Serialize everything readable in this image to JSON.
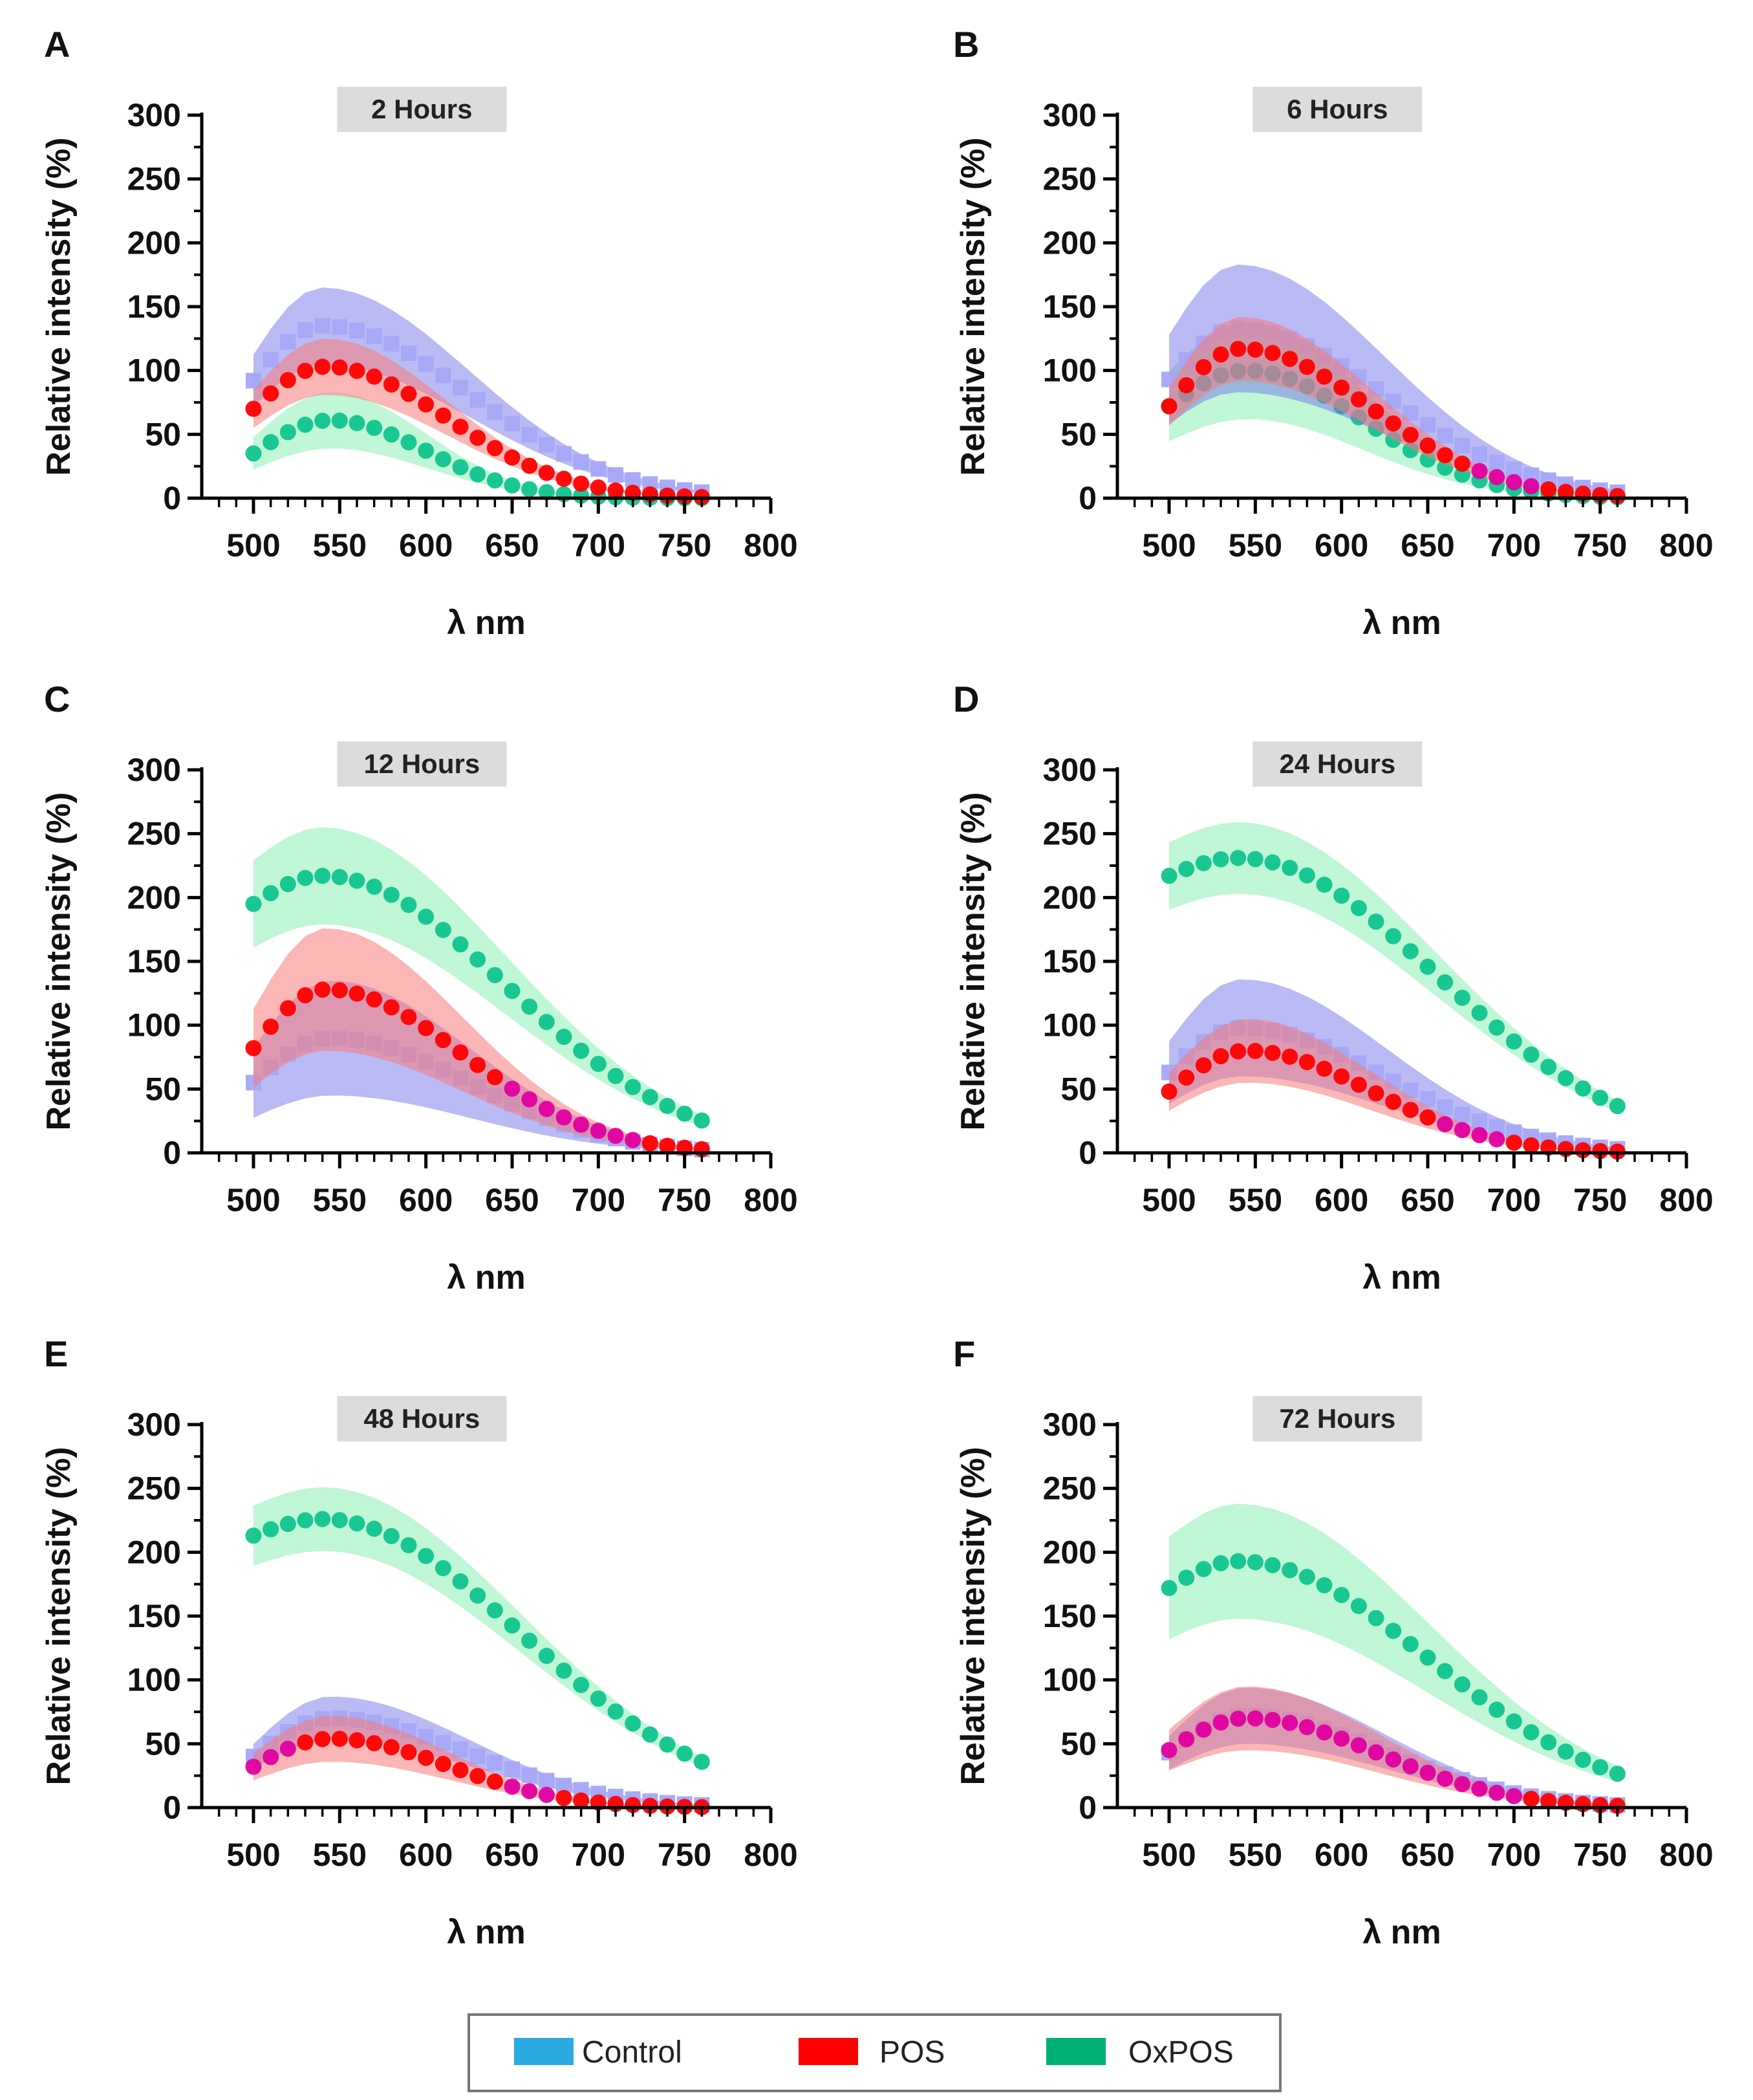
{
  "legend": {
    "entries": [
      {
        "label": "Control",
        "color": "#29ABE2"
      },
      {
        "label": "POS",
        "color": "#FF0000"
      },
      {
        "label": "OxPOS",
        "color": "#00B074"
      }
    ]
  },
  "colors": {
    "control_marker": "#A5A6F6",
    "control_band": "#6E6EE8",
    "pos_marker": "#FF0000",
    "pos_marker_overlap": "#E000A0",
    "pos_band": "#F77A7A",
    "oxpos_marker": "#10C48E",
    "oxpos_band": "#8CF0B4",
    "time_label_bg": "#DCDCDC"
  },
  "chart_data": [
    {
      "type": "scatter",
      "panel": "A",
      "title": "2 Hours",
      "xlabel": "λ nm",
      "ylabel": "Relative intensity (%)",
      "xlim": [
        470,
        800
      ],
      "ylim": [
        0,
        300
      ],
      "xticks": [
        "500",
        "550",
        "600",
        "650",
        "700",
        "750",
        "800"
      ],
      "yticks": [
        "0",
        "50",
        "100",
        "150",
        "200",
        "250",
        "300"
      ],
      "series": [
        {
          "name": "Control",
          "peak_x": 540,
          "peak": 135,
          "start": 92,
          "tail_x": 640,
          "sd": 30,
          "marker": "square"
        },
        {
          "name": "POS",
          "peak_x": 542,
          "peak": 103,
          "start": 70,
          "tail_x": 625,
          "sd": 22,
          "marker": "circle"
        },
        {
          "name": "OxPOS",
          "peak_x": 545,
          "peak": 61,
          "start": 35,
          "tail_x": 610,
          "sd": 22,
          "marker": "circle"
        }
      ]
    },
    {
      "type": "scatter",
      "panel": "B",
      "title": "6 Hours",
      "xlabel": "λ nm",
      "ylabel": "Relative intensity (%)",
      "xlim": [
        470,
        800
      ],
      "ylim": [
        0,
        300
      ],
      "xticks": [
        "500",
        "550",
        "600",
        "650",
        "700",
        "750",
        "800"
      ],
      "yticks": [
        "0",
        "50",
        "100",
        "150",
        "200",
        "250",
        "300"
      ],
      "series": [
        {
          "name": "Control",
          "peak_x": 540,
          "peak": 133,
          "start": 93,
          "tail_x": 640,
          "sd": 50,
          "marker": "square"
        },
        {
          "name": "POS",
          "peak_x": 542,
          "peak": 117,
          "start": 72,
          "tail_x": 630,
          "sd": 25,
          "marker": "circle"
        },
        {
          "name": "OxPOS",
          "peak_x": 545,
          "peak": 100,
          "start": 72,
          "tail_x": 625,
          "sd": 38,
          "marker": "circle"
        }
      ]
    },
    {
      "type": "scatter",
      "panel": "C",
      "title": "12 Hours",
      "xlabel": "λ nm",
      "ylabel": "Relative intensity (%)",
      "xlim": [
        470,
        800
      ],
      "ylim": [
        0,
        300
      ],
      "xticks": [
        "500",
        "550",
        "600",
        "650",
        "700",
        "750",
        "800"
      ],
      "yticks": [
        "0",
        "50",
        "100",
        "150",
        "200",
        "250",
        "300"
      ],
      "series": [
        {
          "name": "Control",
          "peak_x": 545,
          "peak": 90,
          "start": 55,
          "tail_x": 640,
          "sd": 45,
          "marker": "square"
        },
        {
          "name": "POS",
          "peak_x": 542,
          "peak": 128,
          "start": 82,
          "tail_x": 635,
          "sd": 48,
          "marker": "circle"
        },
        {
          "name": "OxPOS",
          "peak_x": 540,
          "peak": 217,
          "start": 195,
          "tail_x": 665,
          "sd": 38,
          "marker": "circle"
        }
      ]
    },
    {
      "type": "scatter",
      "panel": "D",
      "title": "24 Hours",
      "xlabel": "λ nm",
      "ylabel": "Relative intensity (%)",
      "xlim": [
        470,
        800
      ],
      "ylim": [
        0,
        300
      ],
      "xticks": [
        "500",
        "550",
        "600",
        "650",
        "700",
        "750",
        "800"
      ],
      "yticks": [
        "0",
        "50",
        "100",
        "150",
        "200",
        "250",
        "300"
      ],
      "series": [
        {
          "name": "Control",
          "peak_x": 542,
          "peak": 98,
          "start": 63,
          "tail_x": 640,
          "sd": 38,
          "marker": "square"
        },
        {
          "name": "POS",
          "peak_x": 545,
          "peak": 80,
          "start": 48,
          "tail_x": 630,
          "sd": 25,
          "marker": "circle"
        },
        {
          "name": "OxPOS",
          "peak_x": 540,
          "peak": 231,
          "start": 217,
          "tail_x": 675,
          "sd": 28,
          "marker": "circle"
        }
      ]
    },
    {
      "type": "scatter",
      "panel": "E",
      "title": "48 Hours",
      "xlabel": "λ nm",
      "ylabel": "Relative intensity (%)",
      "xlim": [
        470,
        800
      ],
      "ylim": [
        0,
        300
      ],
      "xticks": [
        "500",
        "550",
        "600",
        "650",
        "700",
        "750",
        "800"
      ],
      "yticks": [
        "0",
        "50",
        "100",
        "150",
        "200",
        "250",
        "300"
      ],
      "series": [
        {
          "name": "Control",
          "peak_x": 545,
          "peak": 70,
          "start": 40,
          "tail_x": 640,
          "sd": 17,
          "marker": "square"
        },
        {
          "name": "POS",
          "peak_x": 545,
          "peak": 54,
          "start": 32,
          "tail_x": 625,
          "sd": 18,
          "marker": "circle"
        },
        {
          "name": "OxPOS",
          "peak_x": 540,
          "peak": 226,
          "start": 213,
          "tail_x": 675,
          "sd": 25,
          "marker": "circle"
        }
      ]
    },
    {
      "type": "scatter",
      "panel": "F",
      "title": "72 Hours",
      "xlabel": "λ nm",
      "ylabel": "Relative intensity (%)",
      "xlim": [
        470,
        800
      ],
      "ylim": [
        0,
        300
      ],
      "xticks": [
        "500",
        "550",
        "600",
        "650",
        "700",
        "750",
        "800"
      ],
      "yticks": [
        "0",
        "50",
        "100",
        "150",
        "200",
        "250",
        "300"
      ],
      "series": [
        {
          "name": "Control",
          "peak_x": 545,
          "peak": 72,
          "start": 43,
          "tail_x": 640,
          "sd": 22,
          "marker": "square"
        },
        {
          "name": "POS",
          "peak_x": 545,
          "peak": 70,
          "start": 45,
          "tail_x": 635,
          "sd": 25,
          "marker": "circle"
        },
        {
          "name": "OxPOS",
          "peak_x": 540,
          "peak": 193,
          "start": 172,
          "tail_x": 670,
          "sd": 45,
          "marker": "circle"
        }
      ]
    }
  ]
}
